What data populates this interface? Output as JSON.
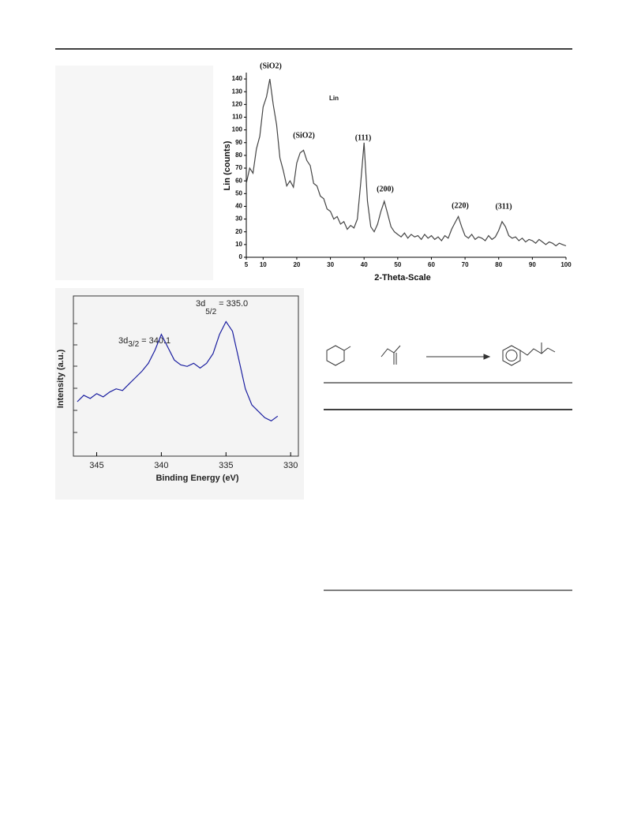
{
  "chart_data": [
    {
      "type": "line",
      "color": "#444444",
      "xlabel": "2-Theta-Scale",
      "ylabel": "Lin (counts)",
      "annotations": [
        "(SiO2)",
        "(SiO2)",
        "(111)",
        "(200)",
        "(220)",
        "(311)",
        "Lin"
      ],
      "x": [
        5,
        6,
        7,
        8,
        9,
        10,
        11,
        12,
        13,
        14,
        15,
        16,
        17,
        18,
        19,
        20,
        21,
        22,
        23,
        24,
        25,
        26,
        27,
        28,
        29,
        30,
        31,
        32,
        33,
        34,
        35,
        36,
        37,
        38,
        39,
        40,
        41,
        42,
        43,
        44,
        45,
        46,
        47,
        48,
        49,
        50,
        51,
        52,
        53,
        54,
        55,
        56,
        57,
        58,
        59,
        60,
        61,
        62,
        63,
        64,
        65,
        66,
        67,
        68,
        69,
        70,
        71,
        72,
        73,
        74,
        75,
        76,
        77,
        78,
        79,
        80,
        81,
        82,
        83,
        84,
        85,
        86,
        87,
        88,
        89,
        90,
        91,
        92,
        93,
        94,
        95,
        96,
        97,
        98,
        99,
        100
      ],
      "values": [
        58,
        70,
        66,
        85,
        95,
        118,
        126,
        140,
        120,
        104,
        78,
        68,
        56,
        60,
        55,
        74,
        82,
        84,
        76,
        72,
        58,
        56,
        48,
        46,
        38,
        36,
        30,
        32,
        26,
        28,
        22,
        25,
        23,
        30,
        58,
        90,
        44,
        24,
        20,
        26,
        36,
        44,
        34,
        24,
        20,
        18,
        16,
        19,
        15,
        18,
        16,
        17,
        14,
        18,
        15,
        17,
        14,
        16,
        13,
        17,
        15,
        22,
        27,
        32,
        24,
        17,
        15,
        18,
        14,
        16,
        15,
        13,
        17,
        14,
        16,
        21,
        28,
        24,
        17,
        15,
        16,
        13,
        15,
        12,
        14,
        13,
        11,
        14,
        12,
        10,
        12,
        11,
        9,
        11,
        10,
        9
      ],
      "xlim": [
        5,
        100
      ],
      "ylim": [
        0,
        145
      ],
      "xticks": [
        5,
        10,
        20,
        30,
        40,
        50,
        60,
        70,
        80,
        90,
        100
      ],
      "yticks": [
        0,
        10,
        20,
        30,
        40,
        50,
        60,
        70,
        80,
        90,
        100,
        110,
        120,
        130,
        140
      ]
    },
    {
      "type": "line",
      "color": "#1a1ea0",
      "xlabel": "Binding Energy (eV)",
      "ylabel": "Intensity (a.u.)",
      "annotations": [
        {
          "text": "3d",
          "sub": "3/2",
          "rest": "= 340.1"
        },
        {
          "text": "3d",
          "sub": "5/2",
          "rest": "= 335.0"
        }
      ],
      "x": [
        346.5,
        346,
        345.5,
        345,
        344.5,
        344,
        343.5,
        343,
        342.5,
        342,
        341.5,
        341,
        340.5,
        340,
        339.5,
        339,
        338.5,
        338,
        337.5,
        337,
        336.5,
        336,
        335.5,
        335,
        334.5,
        334,
        333.5,
        333,
        332.5,
        332,
        331.5,
        331
      ],
      "values": [
        34,
        38,
        36,
        39,
        37,
        40,
        42,
        41,
        45,
        49,
        53,
        58,
        66,
        76,
        68,
        60,
        57,
        56,
        58,
        55,
        58,
        64,
        76,
        84,
        78,
        60,
        42,
        32,
        28,
        24,
        22,
        25
      ],
      "xlim": [
        346.8,
        329.4
      ],
      "ylim": [
        0,
        100
      ],
      "xticks": [
        345,
        340,
        335,
        330
      ]
    }
  ]
}
